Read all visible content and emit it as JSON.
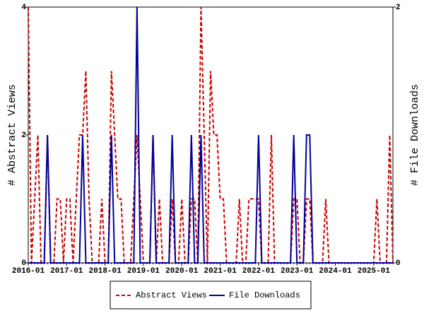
{
  "chart_data": {
    "type": "line",
    "categories": [
      "2016-01",
      null,
      null,
      null,
      null,
      null,
      null,
      null,
      null,
      null,
      null,
      null,
      "2017-01",
      null,
      null,
      null,
      null,
      null,
      null,
      null,
      null,
      null,
      null,
      null,
      "2018-01",
      null,
      null,
      null,
      null,
      null,
      null,
      null,
      null,
      null,
      null,
      null,
      "2019-01",
      null,
      null,
      null,
      null,
      null,
      null,
      null,
      null,
      null,
      null,
      null,
      "2020-01",
      null,
      null,
      null,
      null,
      null,
      null,
      null,
      null,
      null,
      null,
      null,
      "2021-01",
      null,
      null,
      null,
      null,
      null,
      null,
      null,
      null,
      null,
      null,
      null,
      "2022-01",
      null,
      null,
      null,
      null,
      null,
      null,
      null,
      null,
      null,
      null,
      null,
      "2023-01",
      null,
      null,
      null,
      null,
      null,
      null,
      null,
      null,
      null,
      null,
      null,
      "2024-01",
      null,
      null,
      null,
      null,
      null,
      null,
      null,
      null,
      null,
      null,
      null,
      "2025-01",
      null,
      null,
      null,
      null,
      null,
      null
    ],
    "series": [
      {
        "name": "Abstract Views",
        "color": "#cc0000",
        "dash": true,
        "values": [
          4,
          0,
          1,
          2,
          0,
          0,
          2,
          0,
          0,
          1,
          1,
          0,
          1,
          1,
          0,
          1,
          2,
          2,
          3,
          1,
          0,
          0,
          0,
          1,
          0,
          0,
          3,
          2,
          1,
          1,
          0,
          0,
          0,
          1,
          2,
          1,
          0,
          0,
          0,
          2,
          0,
          1,
          0,
          0,
          0,
          1,
          0,
          0,
          1,
          0,
          0,
          1,
          1,
          0,
          4,
          2,
          0,
          3,
          2,
          2,
          1,
          1,
          0,
          0,
          0,
          0,
          1,
          0,
          0,
          1,
          1,
          1,
          1,
          0,
          0,
          0,
          2,
          0,
          0,
          0,
          0,
          0,
          0,
          1,
          1,
          0,
          0,
          1,
          1,
          0,
          0,
          0,
          0,
          1,
          0,
          0,
          0,
          0,
          0,
          0,
          0,
          0,
          0,
          0,
          0,
          0,
          0,
          0,
          0,
          1,
          0,
          0,
          0,
          2,
          0
        ]
      },
      {
        "name": "File Downloads",
        "color": "#000099",
        "axis": "y2",
        "values": [
          0,
          0,
          0,
          0,
          0,
          0,
          1,
          0,
          0,
          0,
          0,
          0,
          0,
          0,
          0,
          0,
          0,
          1,
          0,
          0,
          0,
          0,
          0,
          0,
          0,
          0,
          1,
          0,
          0,
          0,
          0,
          0,
          0,
          0,
          2,
          0,
          0,
          0,
          0,
          1,
          0,
          0,
          0,
          0,
          0,
          1,
          0,
          0,
          0,
          0,
          0,
          1,
          0,
          0,
          1,
          0,
          0,
          0,
          0,
          0,
          0,
          0,
          0,
          0,
          0,
          0,
          0,
          0,
          0,
          0,
          0,
          0,
          1,
          0,
          0,
          0,
          0,
          0,
          0,
          0,
          0,
          0,
          0,
          1,
          0,
          0,
          0,
          1,
          1,
          0,
          0,
          0,
          0,
          0,
          0,
          0,
          0,
          0,
          0,
          0,
          0,
          0,
          0,
          0,
          0,
          0,
          0,
          0,
          0,
          0,
          0,
          0,
          0,
          0,
          0
        ]
      }
    ],
    "ylabel": "# Abstract Views",
    "y2label": "# File Downloads",
    "ylim": [
      0,
      4
    ],
    "yticks": [
      0,
      2,
      4
    ],
    "y2lim": [
      0,
      2
    ],
    "y2ticks": [
      0,
      2
    ]
  }
}
